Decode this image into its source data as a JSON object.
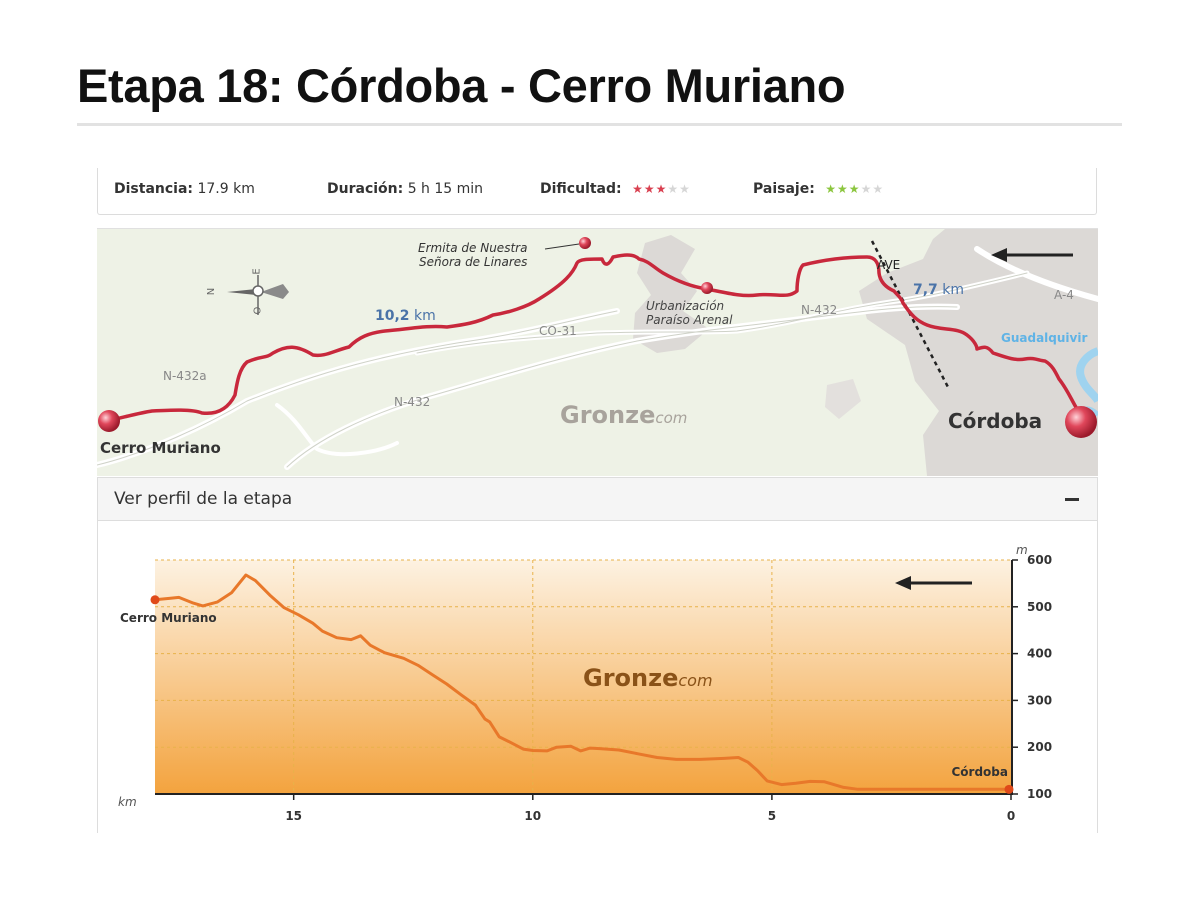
{
  "page": {
    "title": "Etapa 18: Córdoba - Cerro Muriano"
  },
  "stats": {
    "distance_label": "Distancia:",
    "distance_value": "17.9 km",
    "duration_label": "Duración:",
    "duration_value": "5 h 15 min",
    "difficulty_label": "Dificultad:",
    "difficulty_rating": 3,
    "difficulty_max": 5,
    "difficulty_color": "#d94050",
    "landscape_label": "Paisaje:",
    "landscape_rating": 3,
    "landscape_max": 5,
    "landscape_color": "#8cc63f"
  },
  "map": {
    "route_color": "#c8283c",
    "water_color": "#9fd3ef",
    "labels": {
      "ermita_line1": "Ermita de Nuestra",
      "ermita_line2": "Señora de Linares",
      "urbanizacion_line1": "Urbanización",
      "urbanizacion_line2": "Paraíso Arenal",
      "dist1_num": "10,2",
      "dist1_unit": "km",
      "dist2_num": "7,7",
      "dist2_unit": "km",
      "co31": "CO-31",
      "n432": "N-432",
      "n432_b": "N-432",
      "n432a": "N-432a",
      "ave": "AVE",
      "a4": "A-4",
      "river": "Guadalquivir",
      "start": "Cerro Muriano",
      "end": "Córdoba",
      "brand_main": "Gronze",
      "brand_suffix": "com",
      "compass_n": "N",
      "compass_o": "O",
      "compass_e": "E"
    }
  },
  "profile_panel": {
    "header": "Ver perfil de la etapa"
  },
  "chart_data": {
    "type": "area",
    "xlabel": "km",
    "ylabel": "m",
    "x_reversed": true,
    "xlim": [
      0,
      17.9
    ],
    "ylim": [
      100,
      600
    ],
    "xticks": [
      15,
      10,
      5,
      0
    ],
    "yticks": [
      100,
      200,
      300,
      400,
      500,
      600
    ],
    "grid": true,
    "line_color": "#e8782a",
    "fill_top_color": "#fdf2e2",
    "fill_bottom_color": "#f3a33e",
    "series": [
      {
        "points": [
          [
            17.9,
            515
          ],
          [
            17.6,
            518
          ],
          [
            17.4,
            520
          ],
          [
            17.1,
            508
          ],
          [
            16.9,
            502
          ],
          [
            16.6,
            510
          ],
          [
            16.3,
            530
          ],
          [
            16.0,
            568
          ],
          [
            15.8,
            556
          ],
          [
            15.5,
            525
          ],
          [
            15.2,
            498
          ],
          [
            14.9,
            483
          ],
          [
            14.6,
            465
          ],
          [
            14.4,
            448
          ],
          [
            14.1,
            434
          ],
          [
            13.8,
            430
          ],
          [
            13.6,
            438
          ],
          [
            13.4,
            418
          ],
          [
            13.1,
            402
          ],
          [
            12.7,
            390
          ],
          [
            12.4,
            375
          ],
          [
            12.1,
            355
          ],
          [
            11.8,
            335
          ],
          [
            11.5,
            312
          ],
          [
            11.2,
            290
          ],
          [
            11.0,
            260
          ],
          [
            10.9,
            254
          ],
          [
            10.7,
            222
          ],
          [
            10.5,
            212
          ],
          [
            10.2,
            196
          ],
          [
            10.0,
            193
          ],
          [
            9.7,
            192
          ],
          [
            9.5,
            200
          ],
          [
            9.2,
            202
          ],
          [
            9.0,
            192
          ],
          [
            8.8,
            198
          ],
          [
            8.6,
            197
          ],
          [
            8.2,
            194
          ],
          [
            7.8,
            186
          ],
          [
            7.4,
            178
          ],
          [
            7.0,
            174
          ],
          [
            6.5,
            174
          ],
          [
            6.0,
            176
          ],
          [
            5.7,
            178
          ],
          [
            5.5,
            168
          ],
          [
            5.3,
            150
          ],
          [
            5.1,
            128
          ],
          [
            4.8,
            120
          ],
          [
            4.5,
            123
          ],
          [
            4.2,
            127
          ],
          [
            3.9,
            126
          ],
          [
            3.5,
            114
          ],
          [
            3.2,
            110
          ],
          [
            2.5,
            110
          ],
          [
            1.5,
            110
          ],
          [
            0.5,
            110
          ],
          [
            0.0,
            110
          ]
        ]
      }
    ],
    "annotations": {
      "start": "Cerro Muriano",
      "end": "Córdoba"
    },
    "watermark_main": "Gronze",
    "watermark_suffix": "com"
  }
}
